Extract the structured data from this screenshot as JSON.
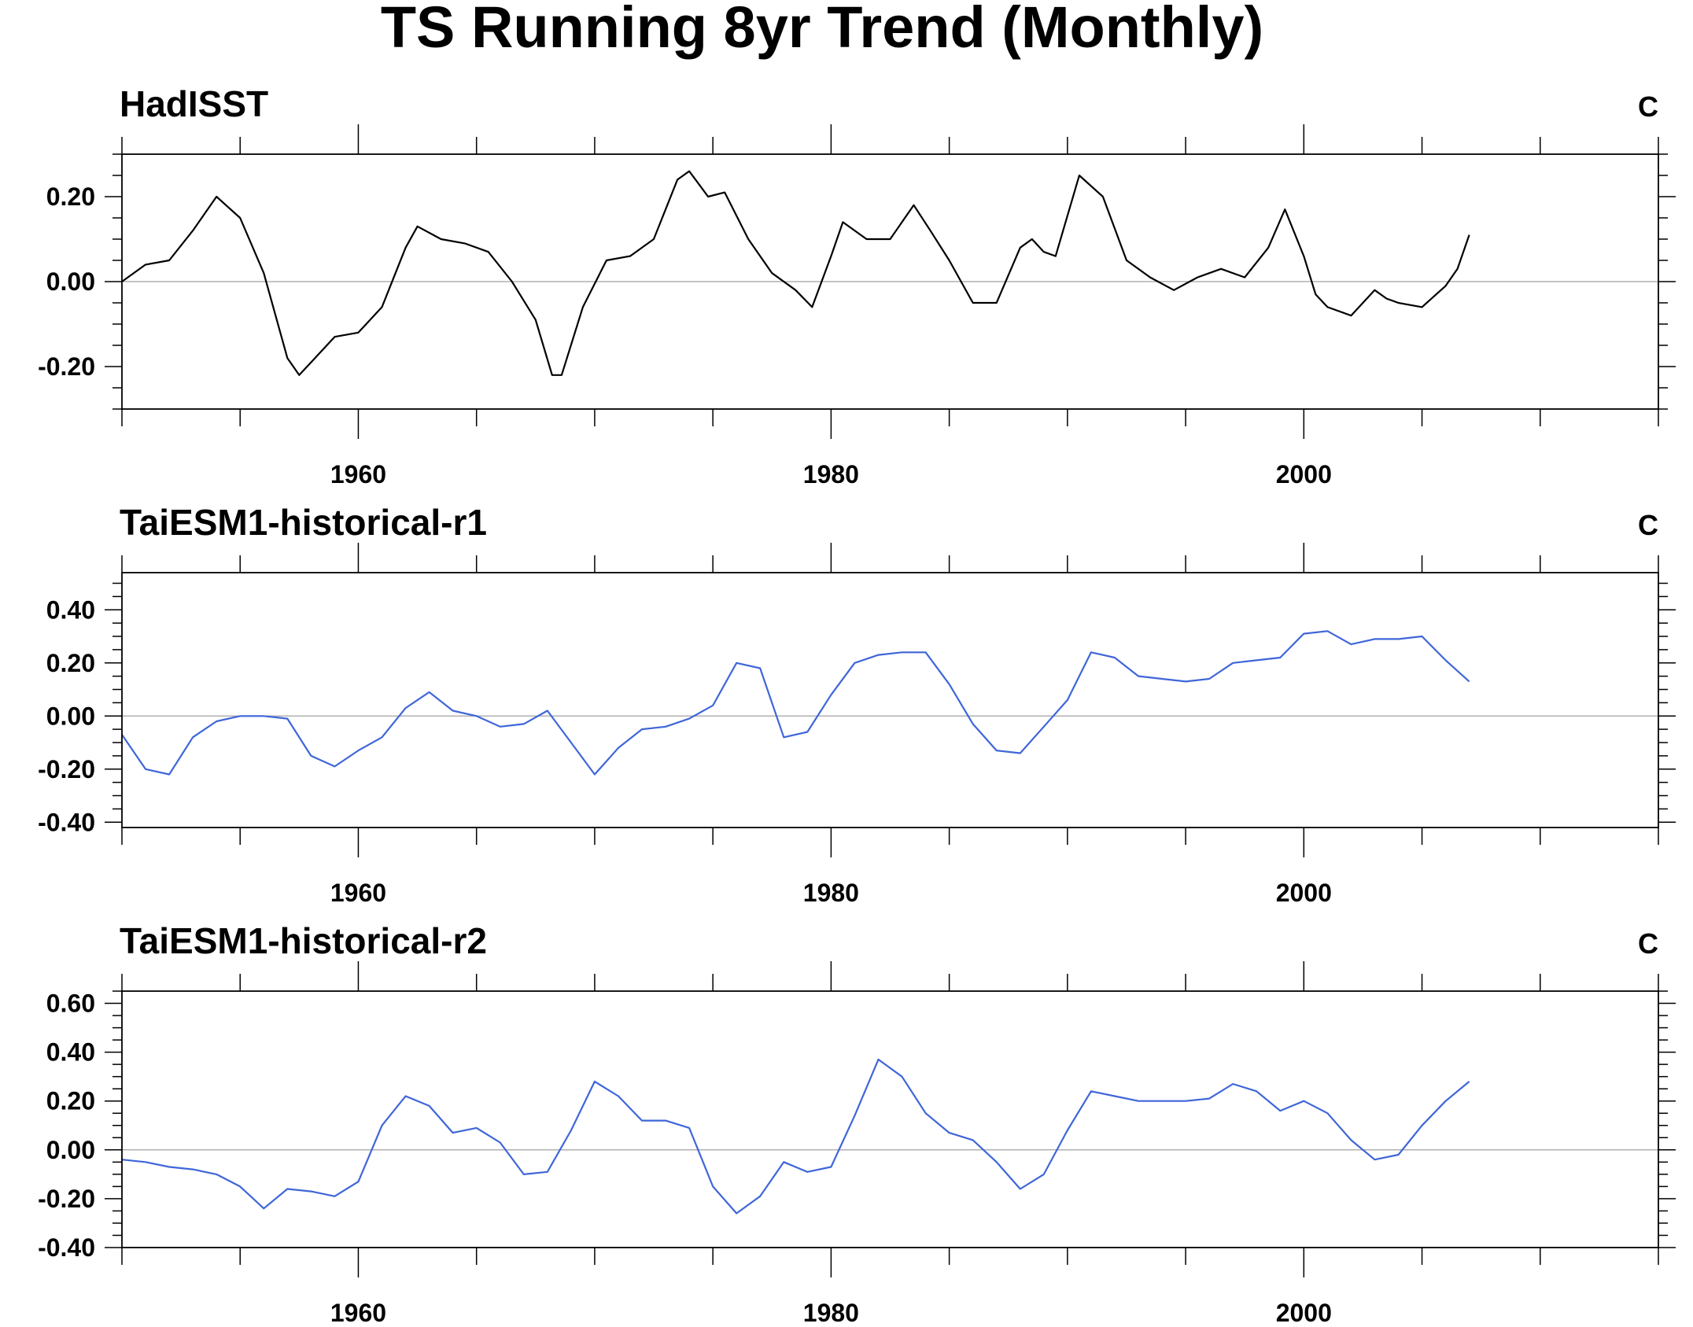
{
  "title": "TS Running 8yr Trend (Monthly)",
  "chart_data": [
    {
      "type": "line",
      "title": "HadISST",
      "unit": "C",
      "color": "#000000",
      "xlim": [
        1950,
        2015
      ],
      "ylim": [
        -0.3,
        0.3
      ],
      "x_ticks": [
        "1960",
        "1980",
        "2000"
      ],
      "y_ticks": [
        "0.20",
        "0.00",
        "-0.20"
      ],
      "reference_line": 0,
      "x": [
        1950.0,
        1951.0,
        1952.0,
        1953.0,
        1954.0,
        1955.0,
        1956.0,
        1957.0,
        1957.5,
        1958.0,
        1959.0,
        1960.0,
        1961.0,
        1962.0,
        1962.5,
        1963.5,
        1964.5,
        1965.5,
        1966.5,
        1967.5,
        1968.2,
        1968.6,
        1969.5,
        1970.5,
        1971.5,
        1972.5,
        1973.5,
        1974.0,
        1974.8,
        1975.5,
        1976.5,
        1977.5,
        1978.5,
        1979.2,
        1980.0,
        1980.5,
        1981.5,
        1982.5,
        1983.5,
        1984.2,
        1985.0,
        1986.0,
        1987.0,
        1988.0,
        1988.5,
        1989.0,
        1989.5,
        1990.5,
        1991.5,
        1992.5,
        1993.5,
        1994.5,
        1995.5,
        1996.5,
        1997.5,
        1998.5,
        1999.2,
        2000.0,
        2000.5,
        2001.0,
        2002.0,
        2003.0,
        2003.5,
        2004.0,
        2005.0,
        2006.0,
        2006.5,
        2007.0
      ],
      "y": [
        0.0,
        0.04,
        0.05,
        0.12,
        0.2,
        0.15,
        0.02,
        -0.18,
        -0.22,
        -0.19,
        -0.13,
        -0.12,
        -0.06,
        0.08,
        0.13,
        0.1,
        0.09,
        0.07,
        0.0,
        -0.09,
        -0.22,
        -0.22,
        -0.06,
        0.05,
        0.06,
        0.1,
        0.24,
        0.26,
        0.2,
        0.21,
        0.1,
        0.02,
        -0.02,
        -0.06,
        0.06,
        0.14,
        0.1,
        0.1,
        0.18,
        0.12,
        0.05,
        -0.05,
        -0.05,
        0.08,
        0.1,
        0.07,
        0.06,
        0.25,
        0.2,
        0.05,
        0.01,
        -0.02,
        0.01,
        0.03,
        0.01,
        0.08,
        0.17,
        0.06,
        -0.03,
        -0.06,
        -0.08,
        -0.02,
        -0.04,
        -0.05,
        -0.06,
        -0.01,
        0.03,
        0.11
      ]
    },
    {
      "type": "line",
      "title": "TaiESM1-historical-r1",
      "unit": "C",
      "color": "#3f66d9",
      "xlim": [
        1950,
        2015
      ],
      "ylim": [
        -0.42,
        0.54
      ],
      "x_ticks": [
        "1960",
        "1980",
        "2000"
      ],
      "y_ticks": [
        "0.40",
        "0.20",
        "0.00",
        "-0.20",
        "-0.40"
      ],
      "reference_line": 0,
      "x": [
        1950.0,
        1951.0,
        1952.0,
        1953.0,
        1954.0,
        1955.0,
        1956.0,
        1957.0,
        1958.0,
        1959.0,
        1960.0,
        1961.0,
        1962.0,
        1963.0,
        1964.0,
        1965.0,
        1966.0,
        1967.0,
        1968.0,
        1969.0,
        1970.0,
        1971.0,
        1972.0,
        1973.0,
        1974.0,
        1975.0,
        1976.0,
        1977.0,
        1978.0,
        1979.0,
        1980.0,
        1981.0,
        1982.0,
        1983.0,
        1984.0,
        1985.0,
        1986.0,
        1987.0,
        1988.0,
        1989.0,
        1990.0,
        1991.0,
        1992.0,
        1993.0,
        1994.0,
        1995.0,
        1996.0,
        1997.0,
        1998.0,
        1999.0,
        2000.0,
        2001.0,
        2002.0,
        2003.0,
        2004.0,
        2005.0,
        2006.0,
        2007.0
      ],
      "y": [
        -0.07,
        -0.2,
        -0.22,
        -0.08,
        -0.02,
        0.0,
        0.0,
        -0.01,
        -0.15,
        -0.19,
        -0.13,
        -0.08,
        0.03,
        0.09,
        0.02,
        0.0,
        -0.04,
        -0.03,
        0.02,
        -0.1,
        -0.22,
        -0.12,
        -0.05,
        -0.04,
        -0.01,
        0.04,
        0.2,
        0.18,
        -0.08,
        -0.06,
        0.08,
        0.2,
        0.23,
        0.24,
        0.24,
        0.12,
        -0.03,
        -0.13,
        -0.14,
        -0.04,
        0.06,
        0.24,
        0.22,
        0.15,
        0.14,
        0.13,
        0.14,
        0.2,
        0.21,
        0.22,
        0.31,
        0.32,
        0.27,
        0.29,
        0.29,
        0.3,
        0.21,
        0.13
      ]
    },
    {
      "type": "line",
      "title": "TaiESM1-historical-r2",
      "unit": "C",
      "color": "#3f66d9",
      "xlim": [
        1950,
        2015
      ],
      "ylim": [
        -0.4,
        0.65
      ],
      "x_ticks": [
        "1960",
        "1980",
        "2000"
      ],
      "y_ticks": [
        "0.60",
        "0.40",
        "0.20",
        "0.00",
        "-0.20",
        "-0.40"
      ],
      "reference_line": 0,
      "x": [
        1950.0,
        1951.0,
        1952.0,
        1953.0,
        1954.0,
        1955.0,
        1956.0,
        1957.0,
        1958.0,
        1959.0,
        1960.0,
        1961.0,
        1962.0,
        1963.0,
        1964.0,
        1965.0,
        1966.0,
        1967.0,
        1968.0,
        1969.0,
        1970.0,
        1971.0,
        1972.0,
        1973.0,
        1974.0,
        1975.0,
        1976.0,
        1977.0,
        1978.0,
        1979.0,
        1980.0,
        1981.0,
        1982.0,
        1983.0,
        1984.0,
        1985.0,
        1986.0,
        1987.0,
        1988.0,
        1989.0,
        1990.0,
        1991.0,
        1992.0,
        1993.0,
        1994.0,
        1995.0,
        1996.0,
        1997.0,
        1998.0,
        1999.0,
        2000.0,
        2001.0,
        2002.0,
        2003.0,
        2004.0,
        2005.0,
        2006.0,
        2007.0
      ],
      "y": [
        -0.04,
        -0.05,
        -0.07,
        -0.08,
        -0.1,
        -0.15,
        -0.24,
        -0.16,
        -0.17,
        -0.19,
        -0.13,
        0.1,
        0.22,
        0.18,
        0.07,
        0.09,
        0.03,
        -0.1,
        -0.09,
        0.08,
        0.28,
        0.22,
        0.12,
        0.12,
        0.09,
        -0.15,
        -0.26,
        -0.19,
        -0.05,
        -0.09,
        -0.07,
        0.14,
        0.37,
        0.3,
        0.15,
        0.07,
        0.04,
        -0.05,
        -0.16,
        -0.1,
        0.08,
        0.24,
        0.22,
        0.2,
        0.2,
        0.2,
        0.21,
        0.27,
        0.24,
        0.16,
        0.2,
        0.15,
        0.04,
        -0.04,
        -0.02,
        0.1,
        0.2,
        0.28
      ]
    }
  ]
}
